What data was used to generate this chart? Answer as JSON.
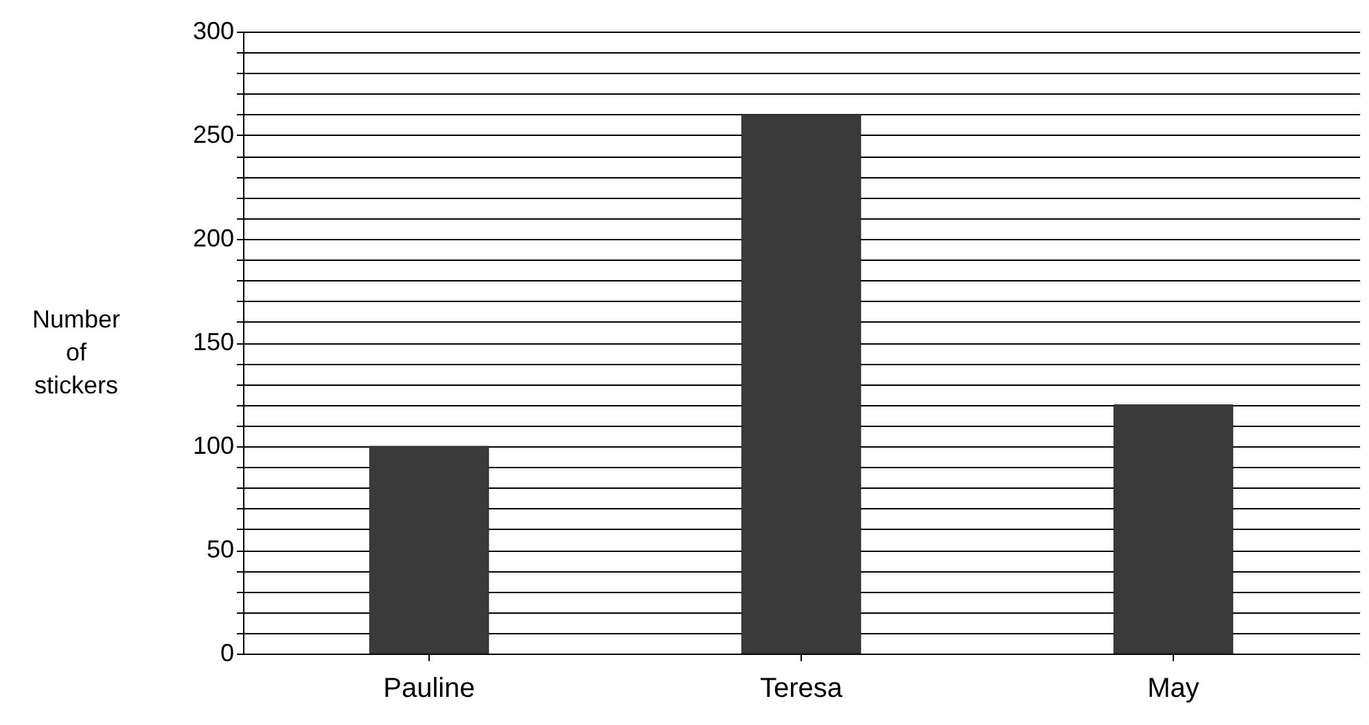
{
  "chart_data": {
    "type": "bar",
    "ylabel": "Number of stickers",
    "categories": [
      "Pauline",
      "Teresa",
      "May"
    ],
    "values": [
      100,
      260,
      120
    ],
    "color": "#3a3a3a",
    "ylim": [
      0,
      300
    ],
    "yticks": [
      0,
      {
        "value": 10,
        "label": null
      },
      {
        "value": 20,
        "label": null
      },
      {
        "value": 30,
        "label": null
      },
      {
        "value": 40,
        "label": null
      },
      50,
      {
        "value": 60,
        "label": null
      },
      {
        "value": 70,
        "label": null
      },
      {
        "value": 80,
        "label": null
      },
      {
        "value": 90,
        "label": null
      },
      100,
      {
        "value": 110,
        "label": null
      },
      {
        "value": 120,
        "label": null
      },
      {
        "value": 130,
        "label": null
      },
      {
        "value": 140,
        "label": null
      },
      150,
      {
        "value": 160,
        "label": null
      },
      {
        "value": 170,
        "label": null
      },
      {
        "value": 180,
        "label": null
      },
      {
        "value": 190,
        "label": null
      },
      200,
      {
        "value": 210,
        "label": null
      },
      {
        "value": 220,
        "label": null
      },
      {
        "value": 230,
        "label": null
      },
      {
        "value": 240,
        "label": null
      },
      250,
      {
        "value": 260,
        "label": null
      },
      {
        "value": 270,
        "label": null
      },
      {
        "value": 280,
        "label": null
      },
      {
        "value": 290,
        "label": null
      },
      300
    ],
    "grid": "y"
  }
}
